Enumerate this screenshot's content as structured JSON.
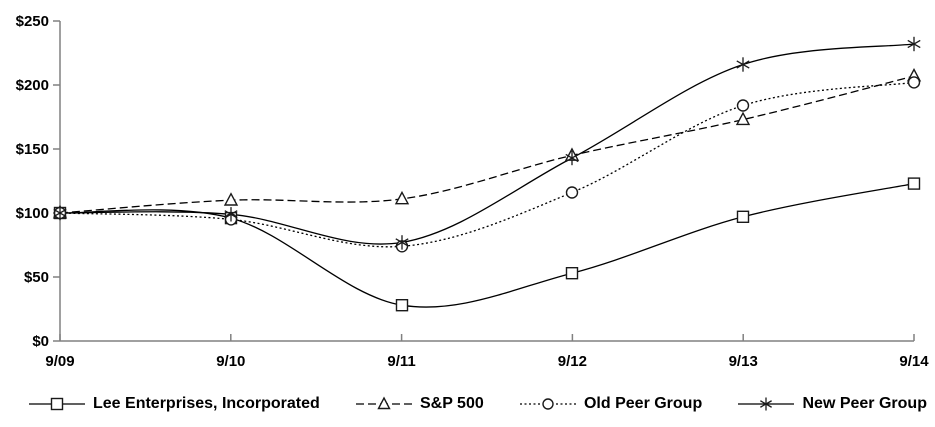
{
  "chart_data": {
    "type": "line",
    "title": "",
    "categories": [
      "9/09",
      "9/10",
      "9/11",
      "9/12",
      "9/13",
      "9/14"
    ],
    "series": [
      {
        "name": "Lee Enterprises, Incorporated",
        "marker": "square",
        "line_style": "solid",
        "values": [
          100,
          96,
          28,
          53,
          97,
          123
        ]
      },
      {
        "name": "S&P 500",
        "marker": "triangle",
        "line_style": "dashed",
        "values": [
          100,
          110,
          111,
          145,
          173,
          207
        ]
      },
      {
        "name": "Old Peer Group",
        "marker": "circle",
        "line_style": "dotted",
        "values": [
          100,
          95,
          74,
          116,
          184,
          202
        ]
      },
      {
        "name": "New Peer Group",
        "marker": "asterisk",
        "line_style": "solid",
        "values": [
          100,
          99,
          77,
          143,
          216,
          232
        ]
      }
    ],
    "y_axis": {
      "min": 0,
      "max": 250,
      "step": 50,
      "tick_labels": [
        "$0",
        "$50",
        "$100",
        "$150",
        "$200",
        "$250"
      ]
    },
    "x_axis": {
      "tick_labels": [
        "9/09",
        "9/10",
        "9/11",
        "9/12",
        "9/13",
        "9/14"
      ]
    },
    "grid": false,
    "legend_position": "bottom",
    "colors": {
      "series_line": "#000000",
      "marker_stroke": "#1a1a1a",
      "marker_fill": "#ffffff",
      "axis": "#808080",
      "text": "#000000",
      "background": "#ffffff"
    }
  }
}
